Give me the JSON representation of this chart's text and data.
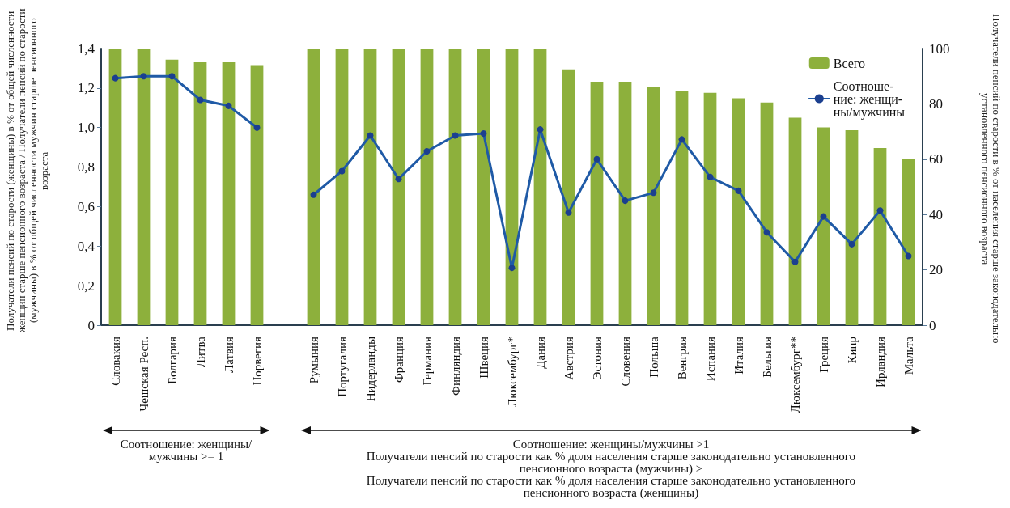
{
  "chart_data": {
    "type": "bar",
    "categories": [
      "Словакия",
      "Чешская Респ.",
      "Болгария",
      "Литва",
      "Латвия",
      "Норвегия",
      null,
      "Румыния",
      "Португалия",
      "Нидерланды",
      "Франция",
      "Германия",
      "Финляндия",
      "Швеция",
      "Люксембург*",
      "Дания",
      "Австрия",
      "Эстония",
      "Словения",
      "Польша",
      "Венгрия",
      "Испания",
      "Италия",
      "Бельгия",
      "Люксембург**",
      "Греция",
      "Кипр",
      "Ирландия",
      "Мальта"
    ],
    "series": [
      {
        "name": "Всего",
        "axis": "y2",
        "color": "#8db03c",
        "values": [
          100,
          100,
          96,
          95,
          95,
          94,
          null,
          100,
          100,
          100,
          100,
          100,
          100,
          100,
          100,
          100,
          92.5,
          88,
          88,
          86,
          84.5,
          84,
          82,
          80.5,
          75,
          71.5,
          70.5,
          64,
          60
        ]
      },
      {
        "name": "Соотноше-\nние: женщи-\nны/мужчины",
        "type": "line",
        "color": "#1f5aa6",
        "values": [
          1.25,
          1.26,
          1.26,
          1.14,
          1.11,
          1.0,
          null,
          0.66,
          0.78,
          0.96,
          0.74,
          0.88,
          0.96,
          0.97,
          0.29,
          0.99,
          0.57,
          0.84,
          0.63,
          0.67,
          0.94,
          0.75,
          0.68,
          0.47,
          0.32,
          0.55,
          0.41,
          0.58,
          0.35
        ]
      }
    ],
    "ylabel": "Получатели пенсий по старости (женщины) в % от общей численности женщин старше пенсионного возраста / Получатели пенсий по старости (мужчины) в % от общей численности мужчин старше пенсионного возраста",
    "y2label": "Получатели пенсий по старости в % от населения старше законодательно установленного пенсионного возраста",
    "ylim": [
      0,
      1.4
    ],
    "yticks": [
      0,
      {
        "value": 0.2,
        "label": "0,2"
      },
      {
        "value": 0.4,
        "label": "0,4"
      },
      {
        "value": 0.6,
        "label": "0,6"
      },
      {
        "value": 0.8,
        "label": "0,8"
      },
      {
        "value": 1.0,
        "label": "1,0"
      },
      {
        "value": 1.2,
        "label": "1,2"
      },
      {
        "value": 1.4,
        "label": "1,4"
      }
    ],
    "y2lim": [
      0,
      100
    ],
    "y2ticks": [
      0,
      20,
      40,
      60,
      80,
      100
    ],
    "annotations": [
      "Соотношение: женщины/мужчины >= 1",
      "Соотношение: женщины/мужчины >1",
      "Получатели пенсий по старости как % доля населения старше законодательно установленного пенсионного возраста (мужчины) >",
      "Получатели пенсий по старости как % доля населения старше законодательно установленного пенсионного возраста (женщины)"
    ],
    "legend": "top right",
    "grid": false,
    "marker": "circle",
    "line_style": "solid"
  }
}
